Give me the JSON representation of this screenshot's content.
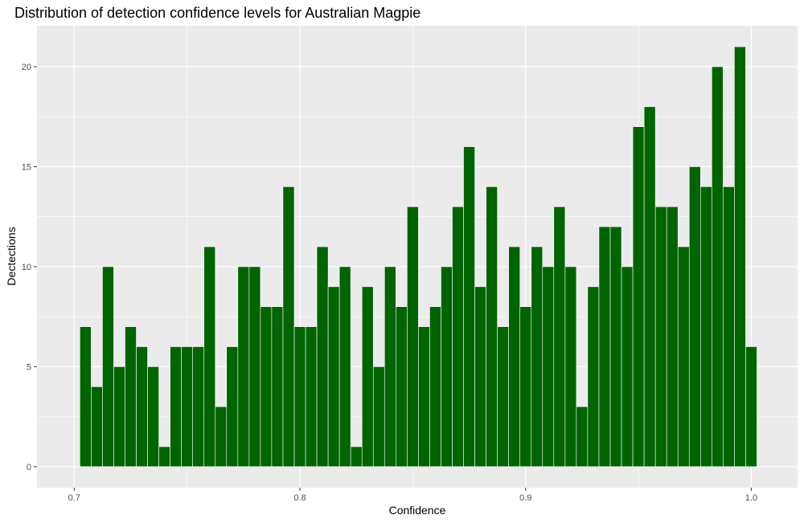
{
  "chart_data": {
    "type": "bar",
    "title": "Distribution of detection confidence levels for Australian Magpie",
    "xlabel": "Confidence",
    "ylabel": "Dectections",
    "xlim": [
      0.6835,
      1.0205
    ],
    "ylim": [
      -1.05,
      22.05
    ],
    "x_ticks": [
      0.7,
      0.8,
      0.9,
      1.0
    ],
    "x_tick_labels": [
      "0.7",
      "0.8",
      "0.9",
      "1.0"
    ],
    "y_ticks": [
      0,
      5,
      10,
      15,
      20
    ],
    "y_tick_labels": [
      "0",
      "5",
      "10",
      "15",
      "20"
    ],
    "grid": true,
    "bar_color": "#006400",
    "bar_outline": "#ffffff",
    "panel_background": "#ebebeb",
    "grid_color": "#ffffff",
    "bin_start": 0.7025,
    "bin_width": 0.005,
    "values": [
      7,
      4,
      10,
      5,
      7,
      6,
      5,
      1,
      6,
      6,
      6,
      11,
      3,
      6,
      10,
      10,
      8,
      8,
      14,
      7,
      7,
      11,
      9,
      10,
      1,
      9,
      5,
      10,
      8,
      13,
      7,
      8,
      10,
      13,
      16,
      9,
      14,
      7,
      11,
      8,
      11,
      10,
      13,
      10,
      3,
      9,
      12,
      12,
      10,
      17,
      18,
      13,
      13,
      11,
      15,
      14,
      20,
      14,
      21,
      6
    ]
  }
}
